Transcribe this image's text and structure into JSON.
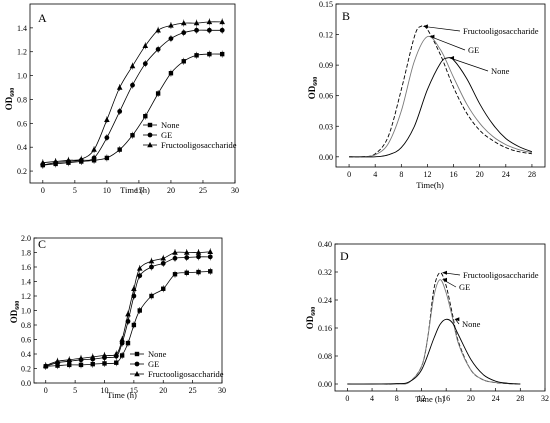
{
  "chart_data": [
    {
      "panel": "A",
      "type": "line",
      "xlabel": "Time (h)",
      "ylabel": "OD600",
      "xlim": [
        -2,
        30
      ],
      "ylim": [
        0.1,
        1.6
      ],
      "xticks": [
        0,
        5,
        10,
        15,
        20,
        25,
        30
      ],
      "yticks": [
        0.2,
        0.4,
        0.6,
        0.8,
        1.0,
        1.2,
        1.4
      ],
      "legend_position": "lower-right",
      "series": [
        {
          "name": "None",
          "marker": "square",
          "x": [
            0,
            2,
            4,
            6,
            8,
            10,
            12,
            14,
            16,
            18,
            20,
            22,
            24,
            26,
            28
          ],
          "y": [
            0.25,
            0.26,
            0.27,
            0.28,
            0.29,
            0.31,
            0.38,
            0.5,
            0.66,
            0.85,
            1.02,
            1.12,
            1.17,
            1.18,
            1.18
          ]
        },
        {
          "name": "GE",
          "marker": "circle",
          "x": [
            0,
            2,
            4,
            6,
            8,
            10,
            12,
            14,
            16,
            18,
            20,
            22,
            24,
            26,
            28
          ],
          "y": [
            0.25,
            0.27,
            0.28,
            0.29,
            0.31,
            0.48,
            0.7,
            0.92,
            1.1,
            1.22,
            1.31,
            1.36,
            1.38,
            1.38,
            1.38
          ]
        },
        {
          "name": "Fructooligosaccharide",
          "marker": "triangle",
          "x": [
            0,
            2,
            4,
            6,
            8,
            10,
            12,
            14,
            16,
            18,
            20,
            22,
            24,
            26,
            28
          ],
          "y": [
            0.27,
            0.28,
            0.29,
            0.3,
            0.38,
            0.63,
            0.9,
            1.08,
            1.25,
            1.38,
            1.42,
            1.44,
            1.44,
            1.45,
            1.45
          ]
        }
      ]
    },
    {
      "panel": "B",
      "type": "line",
      "xlabel": "Time(h)",
      "ylabel": "OD600",
      "xlim": [
        -2,
        30
      ],
      "ylim": [
        -0.01,
        0.15
      ],
      "xticks": [
        0,
        4,
        8,
        12,
        16,
        20,
        24,
        28
      ],
      "yticks": [
        0.0,
        0.03,
        0.06,
        0.09,
        0.12,
        0.15
      ],
      "annotations": [
        "Fructooligosaccharide",
        "GE",
        "None"
      ],
      "series": [
        {
          "name": "Fructooligosaccharide",
          "style": "dashed",
          "x": [
            0,
            2,
            4,
            6,
            8,
            10,
            11,
            12,
            14,
            16,
            18,
            20,
            22,
            24,
            26,
            28
          ],
          "y": [
            0,
            0,
            0.003,
            0.02,
            0.066,
            0.118,
            0.128,
            0.125,
            0.1,
            0.068,
            0.043,
            0.026,
            0.016,
            0.009,
            0.005,
            0.003
          ]
        },
        {
          "name": "GE",
          "style": "solid-grey",
          "x": [
            0,
            2,
            4,
            6,
            8,
            10,
            12,
            14,
            16,
            18,
            20,
            22,
            24,
            26,
            28
          ],
          "y": [
            0,
            0,
            0.002,
            0.013,
            0.045,
            0.094,
            0.118,
            0.105,
            0.078,
            0.052,
            0.033,
            0.02,
            0.012,
            0.007,
            0.004
          ]
        },
        {
          "name": "None",
          "style": "solid",
          "x": [
            0,
            2,
            4,
            6,
            8,
            10,
            12,
            14,
            15,
            16,
            18,
            20,
            22,
            24,
            26,
            28
          ],
          "y": [
            0,
            0,
            0,
            0.002,
            0.009,
            0.03,
            0.066,
            0.092,
            0.097,
            0.095,
            0.077,
            0.052,
            0.032,
            0.018,
            0.01,
            0.005
          ]
        }
      ]
    },
    {
      "panel": "C",
      "type": "line",
      "xlabel": "Time (h)",
      "ylabel": "OD600",
      "xlim": [
        -2,
        30
      ],
      "ylim": [
        0.0,
        2.0
      ],
      "xticks": [
        0,
        5,
        10,
        15,
        20,
        25,
        30
      ],
      "yticks": [
        0.0,
        0.2,
        0.4,
        0.6,
        0.8,
        1.0,
        1.2,
        1.4,
        1.6,
        1.8,
        2.0
      ],
      "legend_position": "lower-center",
      "series": [
        {
          "name": "None",
          "marker": "square",
          "x": [
            0,
            2,
            4,
            6,
            8,
            10,
            12,
            13,
            14,
            15,
            16,
            18,
            20,
            22,
            24,
            26,
            28
          ],
          "y": [
            0.23,
            0.24,
            0.25,
            0.25,
            0.26,
            0.27,
            0.28,
            0.38,
            0.55,
            0.8,
            1.0,
            1.2,
            1.3,
            1.5,
            1.52,
            1.53,
            1.54
          ]
        },
        {
          "name": "GE",
          "marker": "circle",
          "x": [
            0,
            2,
            4,
            6,
            8,
            10,
            12,
            13,
            14,
            15,
            16,
            18,
            20,
            22,
            24,
            26,
            28
          ],
          "y": [
            0.23,
            0.28,
            0.3,
            0.32,
            0.33,
            0.35,
            0.37,
            0.55,
            0.85,
            1.2,
            1.48,
            1.6,
            1.65,
            1.72,
            1.73,
            1.74,
            1.74
          ]
        },
        {
          "name": "Fructooligosaccharide",
          "marker": "triangle",
          "x": [
            0,
            2,
            4,
            6,
            8,
            10,
            12,
            13,
            14,
            15,
            16,
            18,
            20,
            22,
            24,
            26,
            28
          ],
          "y": [
            0.24,
            0.3,
            0.32,
            0.34,
            0.36,
            0.38,
            0.4,
            0.6,
            0.95,
            1.3,
            1.58,
            1.68,
            1.72,
            1.8,
            1.8,
            1.8,
            1.81
          ]
        }
      ]
    },
    {
      "panel": "D",
      "type": "line",
      "xlabel": "Time (h)",
      "ylabel": "OD600",
      "xlim": [
        -2,
        32
      ],
      "ylim": [
        -0.02,
        0.4
      ],
      "xticks": [
        0,
        4,
        8,
        12,
        16,
        20,
        24,
        28,
        32
      ],
      "yticks": [
        0.0,
        0.08,
        0.16,
        0.24,
        0.32,
        0.4
      ],
      "annotations": [
        "Fructooligosaccharide",
        "GE",
        "None"
      ],
      "series": [
        {
          "name": "Fructooligosaccharide",
          "style": "dashed",
          "x": [
            0,
            4,
            8,
            10,
            12,
            13,
            14,
            15,
            16,
            17,
            18,
            20,
            22,
            24,
            26,
            28
          ],
          "y": [
            0,
            0,
            0,
            0.005,
            0.05,
            0.13,
            0.27,
            0.318,
            0.28,
            0.2,
            0.12,
            0.04,
            0.012,
            0.004,
            0.001,
            0
          ]
        },
        {
          "name": "GE",
          "style": "solid-grey",
          "x": [
            0,
            4,
            8,
            10,
            12,
            13,
            14,
            15,
            16,
            17,
            18,
            20,
            22,
            24,
            26,
            28
          ],
          "y": [
            0,
            0,
            0,
            0.005,
            0.05,
            0.13,
            0.25,
            0.298,
            0.26,
            0.19,
            0.115,
            0.04,
            0.012,
            0.004,
            0.001,
            0
          ]
        },
        {
          "name": "None",
          "style": "solid",
          "x": [
            0,
            4,
            8,
            10,
            12,
            14,
            15,
            16,
            17,
            18,
            20,
            22,
            24,
            26,
            28
          ],
          "y": [
            0,
            0,
            0.001,
            0.006,
            0.04,
            0.13,
            0.17,
            0.185,
            0.175,
            0.14,
            0.07,
            0.027,
            0.008,
            0.002,
            0
          ]
        }
      ]
    }
  ]
}
